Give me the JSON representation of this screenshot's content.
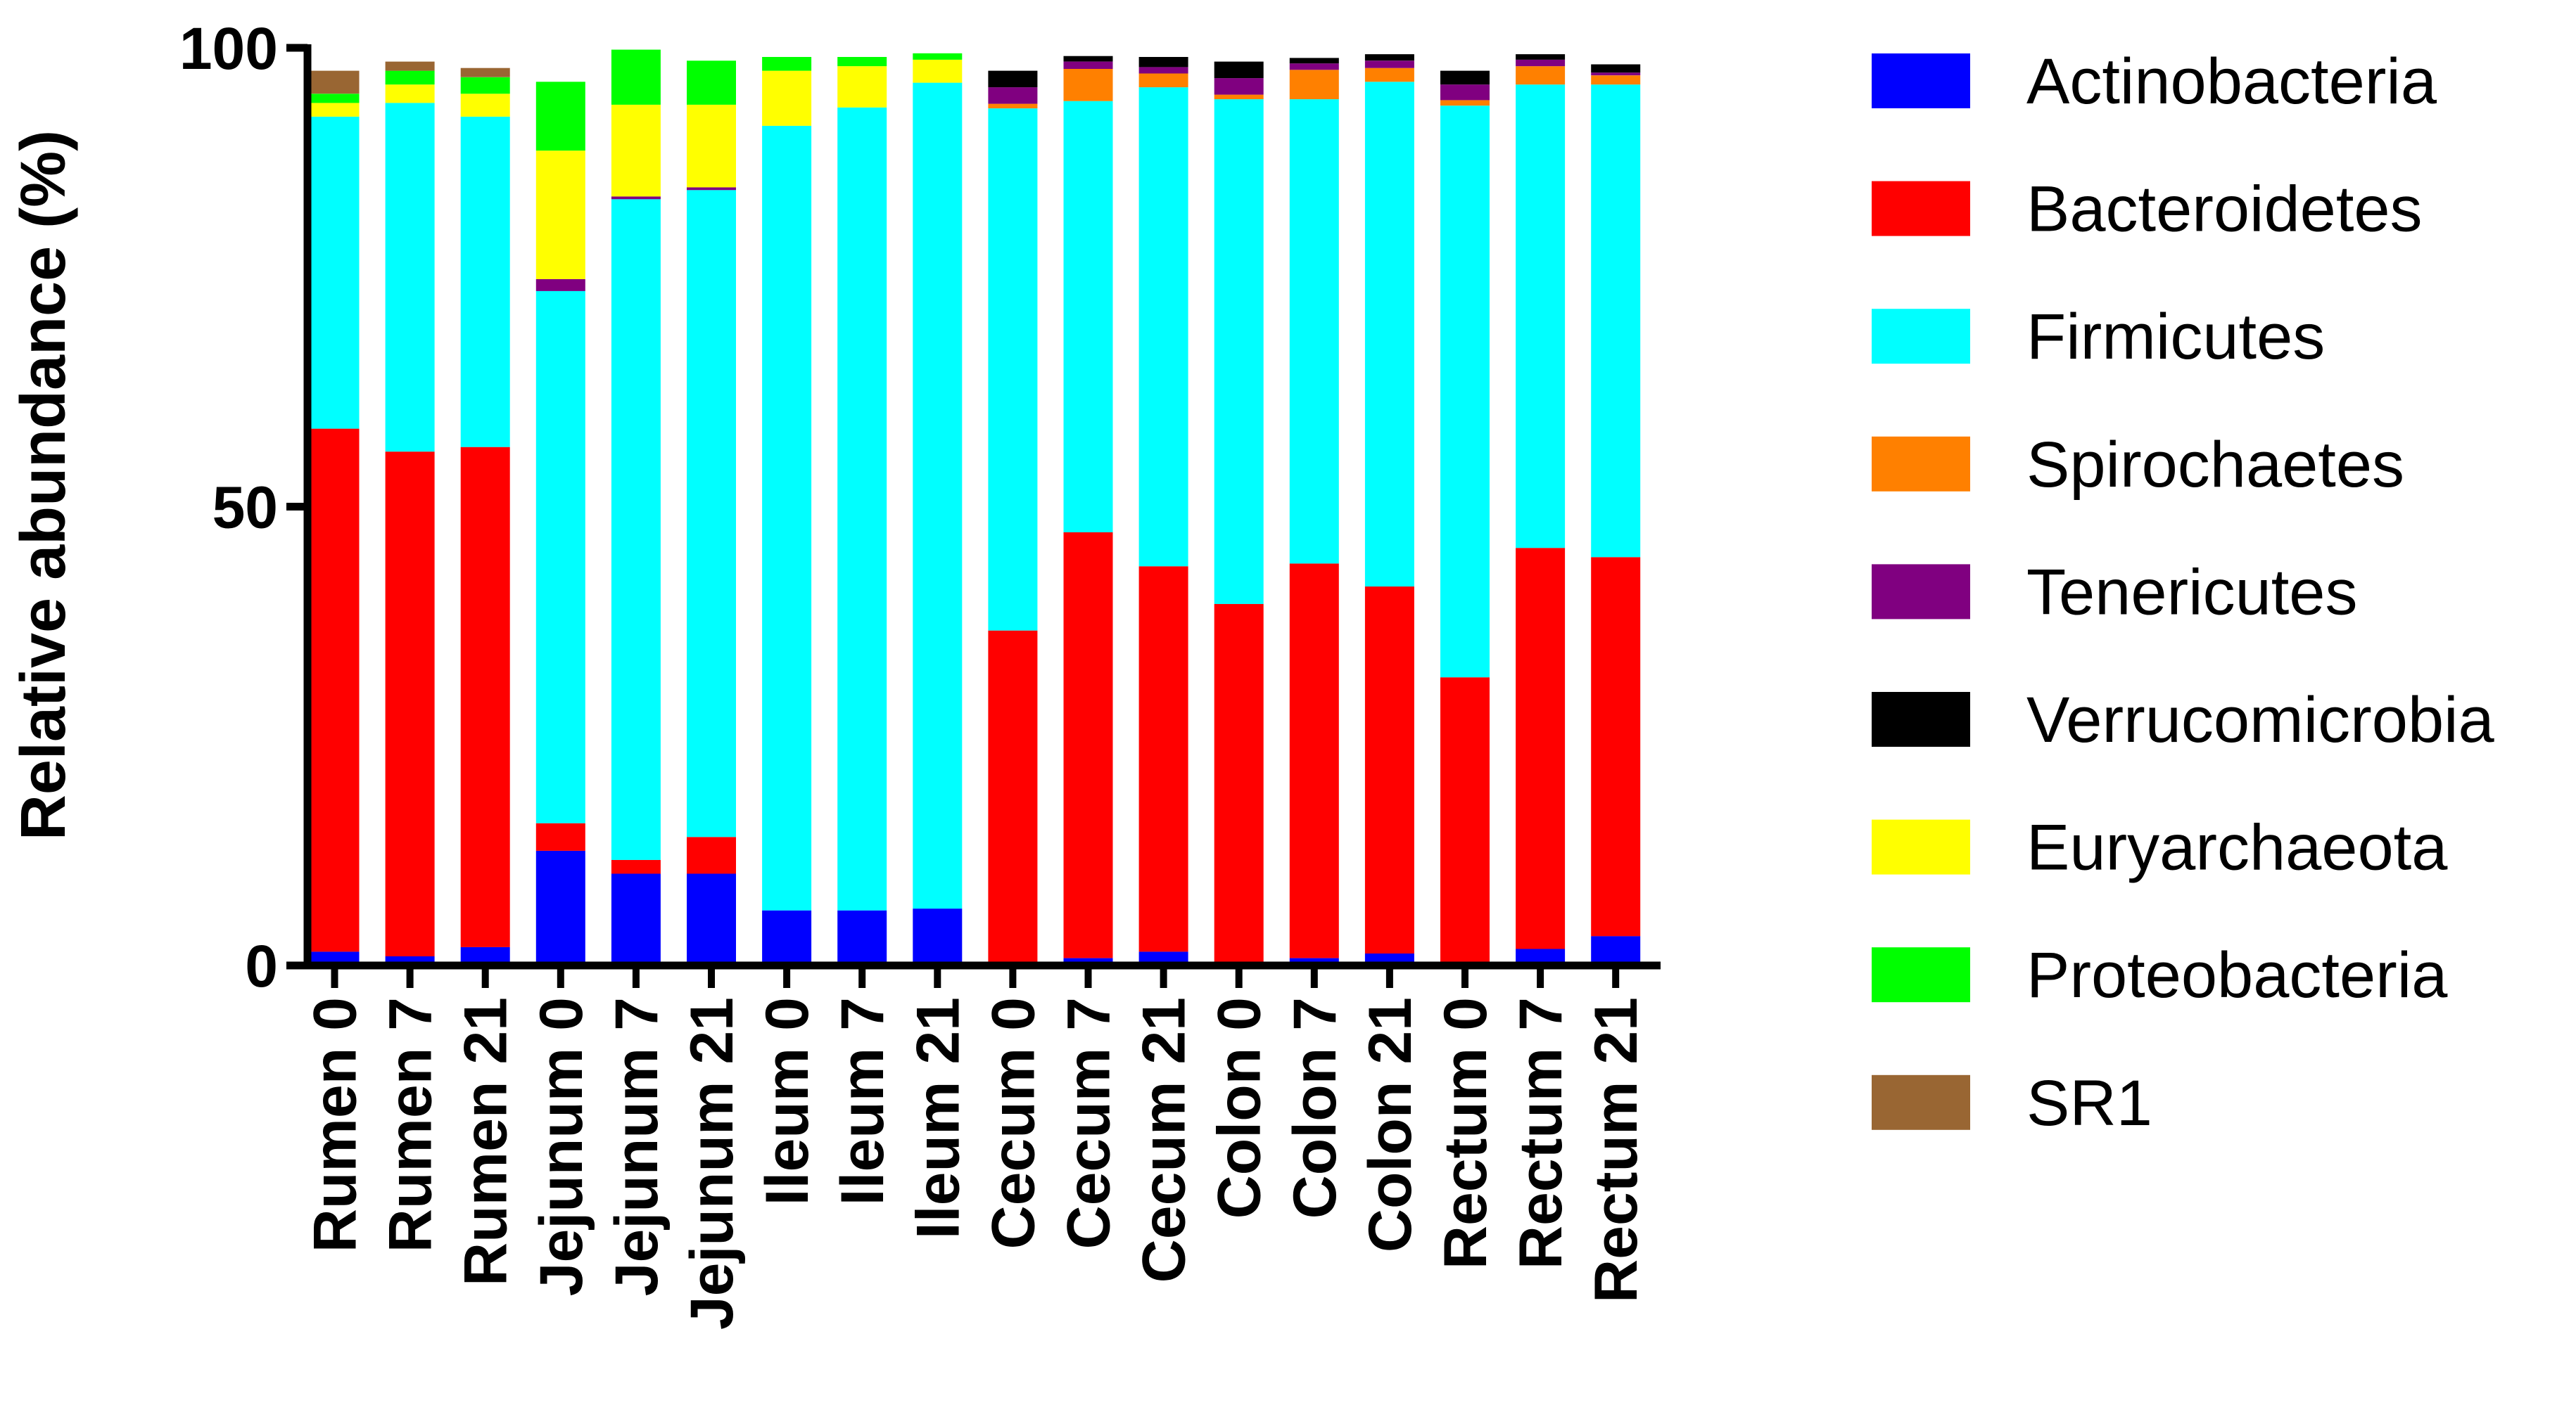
{
  "chart_data": {
    "type": "bar",
    "stacked": true,
    "title": "",
    "xlabel": "",
    "ylabel": "Relative abundance (%)",
    "ylim": [
      0,
      100
    ],
    "yticks": [
      "0",
      "50",
      "100"
    ],
    "grid": false,
    "legend_position": "right",
    "categories": [
      "Rumen 0",
      "Rumen 7",
      "Rumen 21",
      "Jejunum 0",
      "Jejunum 7",
      "Jejunum 21",
      "Ileum 0",
      "Ileum 7",
      "Ileum 21",
      "Cecum 0",
      "Cecum 7",
      "Cecum 21",
      "Colon 0",
      "Colon 7",
      "Colon 21",
      "Rectum 0",
      "Rectum 7",
      "Rectum 21"
    ],
    "series": [
      {
        "name": "Actinobacteria",
        "color": "#0000ff",
        "values": [
          1.5,
          1.0,
          2.0,
          12.5,
          10.0,
          10.0,
          6.0,
          6.0,
          6.2,
          0.1,
          0.8,
          1.5,
          0.2,
          0.8,
          1.3,
          0.1,
          1.8,
          3.2
        ]
      },
      {
        "name": "Bacteroidetes",
        "color": "#ff0000",
        "values": [
          57.0,
          55.0,
          54.5,
          3.0,
          1.5,
          4.0,
          0.0,
          0.0,
          0.0,
          36.4,
          46.4,
          42.0,
          39.2,
          43.0,
          40.0,
          31.3,
          43.7,
          41.3
        ]
      },
      {
        "name": "Firmicutes",
        "color": "#00ffff",
        "values": [
          34.0,
          38.0,
          36.0,
          58.0,
          72.0,
          70.5,
          85.5,
          87.5,
          90.0,
          56.9,
          47.0,
          52.2,
          55.0,
          50.6,
          55.0,
          62.3,
          50.5,
          51.5
        ]
      },
      {
        "name": "Spirochaetes",
        "color": "#ff8000",
        "values": [
          0.0,
          0.0,
          0.0,
          0.0,
          0.0,
          0.0,
          0.0,
          0.0,
          0.0,
          0.5,
          3.5,
          1.5,
          0.5,
          3.2,
          1.5,
          0.6,
          2.0,
          1.0
        ]
      },
      {
        "name": "Tenericutes",
        "color": "#800080",
        "values": [
          0.0,
          0.0,
          0.0,
          1.3,
          0.3,
          0.3,
          0.0,
          0.0,
          0.0,
          1.8,
          0.8,
          0.7,
          1.8,
          0.7,
          0.8,
          1.7,
          0.7,
          0.3
        ]
      },
      {
        "name": "Verrucomicrobia",
        "color": "#000000",
        "values": [
          0.0,
          0.0,
          0.0,
          0.0,
          0.0,
          0.0,
          0.0,
          0.0,
          0.0,
          1.8,
          0.6,
          1.1,
          1.8,
          0.6,
          0.7,
          1.5,
          0.6,
          0.9
        ]
      },
      {
        "name": "Euryarchaeota",
        "color": "#ffff00",
        "values": [
          1.5,
          2.0,
          2.5,
          14.0,
          10.0,
          9.0,
          6.0,
          4.5,
          2.5,
          0.0,
          0.0,
          0.0,
          0.0,
          0.0,
          0.0,
          0.0,
          0.0,
          0.0
        ]
      },
      {
        "name": "Proteobacteria",
        "color": "#00ff00",
        "values": [
          1.0,
          1.5,
          1.8,
          7.5,
          6.0,
          4.8,
          1.5,
          1.0,
          0.7,
          0.0,
          0.0,
          0.0,
          0.0,
          0.0,
          0.0,
          0.0,
          0.0,
          0.0
        ]
      },
      {
        "name": "SR1",
        "color": "#996633",
        "values": [
          2.5,
          1.0,
          1.0,
          0.0,
          0.0,
          0.0,
          0.0,
          0.0,
          0.0,
          0.0,
          0.0,
          0.0,
          0.0,
          0.0,
          0.0,
          0.0,
          0.0,
          0.0
        ]
      }
    ]
  }
}
